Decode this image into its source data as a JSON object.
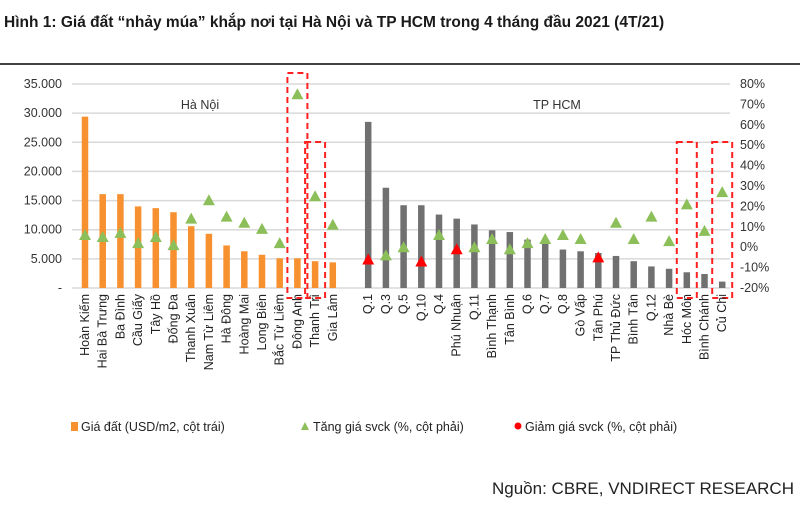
{
  "title": "Hình 1: Giá đất “nhảy múa” khắp nơi tại Hà Nội và TP HCM trong 4 tháng đầu 2021 (4T/21)",
  "source": "Nguồn: CBRE, VNDIRECT RESEARCH",
  "colors": {
    "hanoi_bar": "#f7902e",
    "hcm_bar": "#707070",
    "increase": "#8cbf5a",
    "decrease": "#ff0000",
    "highlight_box": "#ff2020"
  },
  "chart_data": {
    "type": "bar",
    "regions": [
      {
        "label": "Hà Nội"
      },
      {
        "label": "TP HCM"
      }
    ],
    "categories": [
      "Hoàn Kiếm",
      "Hai Bà Trưng",
      "Ba Đình",
      "Cầu Giấy",
      "Tây Hồ",
      "Đống Đa",
      "Thanh Xuân",
      "Nam Từ Liêm",
      "Hà Đông",
      "Hoàng Mai",
      "Long Biên",
      "Bắc Từ Liêm",
      "Đông Anh",
      "Thanh Trì",
      "Gia Lâm",
      "",
      "Q.1",
      "Q.3",
      "Q.5",
      "Q.10",
      "Q.4",
      "Phú Nhuận",
      "Q.11",
      "Bình Thạnh",
      "Tân Bình",
      "Q.6",
      "Q.7",
      "Q.8",
      "Gò Vấp",
      "Tân Phú",
      "TP Thủ Đức",
      "Bình Tân",
      "Q.12",
      "Nhà Bè",
      "Hóc Môn",
      "Bình Chánh",
      "Củ Chi"
    ],
    "region_of_category": [
      "Hà Nội",
      "Hà Nội",
      "Hà Nội",
      "Hà Nội",
      "Hà Nội",
      "Hà Nội",
      "Hà Nội",
      "Hà Nội",
      "Hà Nội",
      "Hà Nội",
      "Hà Nội",
      "Hà Nội",
      "Hà Nội",
      "Hà Nội",
      "Hà Nội",
      "",
      "TP HCM",
      "TP HCM",
      "TP HCM",
      "TP HCM",
      "TP HCM",
      "TP HCM",
      "TP HCM",
      "TP HCM",
      "TP HCM",
      "TP HCM",
      "TP HCM",
      "TP HCM",
      "TP HCM",
      "TP HCM",
      "TP HCM",
      "TP HCM",
      "TP HCM",
      "TP HCM",
      "TP HCM",
      "TP HCM",
      "TP HCM"
    ],
    "series": [
      {
        "name": "Giá đất (USD/m2, cột trái)",
        "axis": "left",
        "type": "bar",
        "values": [
          29400,
          16100,
          16100,
          14000,
          13700,
          13000,
          10600,
          9300,
          7300,
          6300,
          5700,
          5100,
          5100,
          4600,
          4400,
          null,
          28500,
          17200,
          14200,
          14200,
          12600,
          11900,
          10900,
          9900,
          9600,
          8300,
          7700,
          6600,
          6300,
          6000,
          5500,
          4600,
          3700,
          3300,
          2700,
          2400,
          1100
        ]
      },
      {
        "name": "Tăng giá svck (%, cột phải)",
        "axis": "right",
        "type": "scatter",
        "marker": "triangle",
        "values": [
          6,
          5,
          7,
          2,
          5,
          1,
          14,
          23,
          15,
          12,
          9,
          2,
          75,
          25,
          11,
          null,
          null,
          -4,
          0,
          null,
          6,
          null,
          0,
          4,
          -1,
          2,
          4,
          6,
          4,
          null,
          12,
          4,
          15,
          3,
          21,
          8,
          27
        ]
      },
      {
        "name": "Giảm giá svck (%, cột phải)",
        "axis": "right",
        "type": "scatter",
        "marker": "triangle",
        "values": [
          null,
          null,
          null,
          null,
          null,
          null,
          null,
          null,
          null,
          null,
          null,
          null,
          null,
          null,
          null,
          null,
          -6,
          null,
          null,
          -7,
          null,
          -1,
          null,
          null,
          null,
          null,
          null,
          null,
          null,
          -5,
          null,
          null,
          null,
          null,
          null,
          null,
          null
        ]
      }
    ],
    "highlighted": [
      "Đông Anh",
      "Thanh Trì",
      "Hóc Môn",
      "Củ Chi"
    ],
    "left_axis": {
      "ylim": [
        0,
        35000
      ],
      "ticks": [
        "-",
        "5.000",
        "10.000",
        "15.000",
        "20.000",
        "25.000",
        "30.000",
        "35.000"
      ]
    },
    "right_axis": {
      "ylim": [
        -20,
        80
      ],
      "ticks": [
        "-20%",
        "-10%",
        "0%",
        "10%",
        "20%",
        "30%",
        "40%",
        "50%",
        "60%",
        "70%",
        "80%"
      ]
    },
    "grid": true,
    "legend_position": "bottom"
  }
}
